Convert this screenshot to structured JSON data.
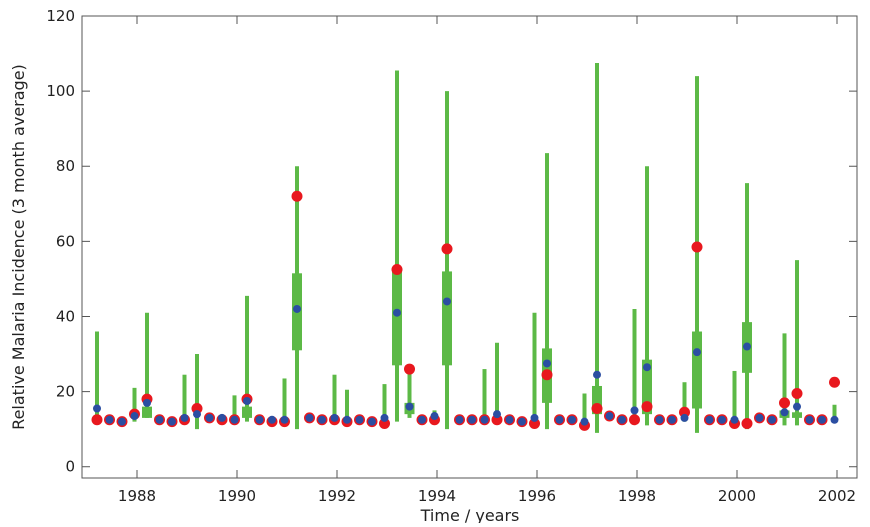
{
  "chart_data": {
    "type": "box",
    "xlabel": "Time / years",
    "ylabel": "Relative Malaria Incidence (3 month average)",
    "x": [
      1987.2,
      1987.45,
      1987.7,
      1987.95,
      1988.2,
      1988.45,
      1988.7,
      1988.95,
      1989.2,
      1989.45,
      1989.7,
      1989.95,
      1990.2,
      1990.45,
      1990.7,
      1990.95,
      1991.2,
      1991.45,
      1991.7,
      1991.95,
      1992.2,
      1992.45,
      1992.7,
      1992.95,
      1993.2,
      1993.45,
      1993.7,
      1993.95,
      1994.2,
      1994.45,
      1994.7,
      1994.95,
      1995.2,
      1995.45,
      1995.7,
      1995.95,
      1996.2,
      1996.45,
      1996.7,
      1996.95,
      1997.2,
      1997.45,
      1997.7,
      1997.95,
      1998.2,
      1998.45,
      1998.7,
      1998.95,
      1999.2,
      1999.45,
      1999.7,
      1999.95,
      2000.2,
      2000.45,
      2000.7,
      2000.95,
      2001.2,
      2001.45,
      2001.7,
      2001.95
    ],
    "high": [
      36,
      null,
      null,
      21,
      41,
      null,
      null,
      24.5,
      30,
      null,
      null,
      19,
      45.5,
      null,
      null,
      23.5,
      80,
      null,
      null,
      24.5,
      20.5,
      null,
      null,
      22,
      105.5,
      25,
      null,
      15,
      100,
      null,
      null,
      26,
      33,
      null,
      null,
      41,
      83.5,
      null,
      null,
      19.5,
      107.5,
      null,
      null,
      42,
      80,
      null,
      null,
      22.5,
      104,
      null,
      null,
      25.5,
      75.5,
      null,
      null,
      35.5,
      55,
      null,
      null,
      16.5
    ],
    "low": [
      12,
      null,
      null,
      12,
      13,
      null,
      null,
      12,
      10,
      null,
      null,
      12,
      12,
      null,
      null,
      11,
      10,
      null,
      null,
      12,
      12,
      null,
      null,
      11,
      12,
      13,
      null,
      12,
      10,
      null,
      null,
      12,
      12,
      null,
      null,
      11,
      10,
      null,
      null,
      11,
      9,
      null,
      null,
      12,
      11,
      null,
      null,
      12,
      9,
      null,
      null,
      11,
      10,
      null,
      null,
      11,
      11,
      null,
      null,
      12
    ],
    "q1": [
      null,
      null,
      null,
      null,
      13,
      null,
      null,
      null,
      null,
      null,
      null,
      null,
      13,
      null,
      null,
      null,
      31,
      null,
      null,
      null,
      null,
      null,
      null,
      null,
      27,
      14,
      null,
      null,
      27,
      null,
      null,
      null,
      null,
      null,
      null,
      null,
      17,
      null,
      null,
      null,
      14,
      null,
      null,
      null,
      14,
      null,
      null,
      null,
      15.5,
      null,
      null,
      null,
      25,
      null,
      null,
      13,
      13,
      null,
      null,
      null
    ],
    "q3": [
      null,
      null,
      null,
      null,
      16,
      null,
      null,
      null,
      null,
      null,
      null,
      null,
      16,
      null,
      null,
      null,
      51.5,
      null,
      null,
      null,
      null,
      null,
      null,
      null,
      52,
      17,
      null,
      null,
      52,
      null,
      null,
      null,
      null,
      null,
      null,
      null,
      31.5,
      null,
      null,
      null,
      21.5,
      null,
      null,
      null,
      28.5,
      null,
      null,
      null,
      36,
      null,
      null,
      null,
      38.5,
      null,
      null,
      15,
      14.5,
      null,
      null,
      null
    ],
    "median": [
      15.5,
      12.5,
      12,
      13.5,
      17,
      12.5,
      12,
      13,
      14,
      13,
      13,
      12.5,
      17.5,
      12.5,
      12.5,
      12.5,
      42,
      13,
      12.5,
      13,
      12.5,
      12.5,
      12,
      13,
      41,
      16,
      12.5,
      13.5,
      44,
      12.5,
      12.5,
      12.5,
      14,
      12.5,
      12,
      13,
      27.5,
      12.5,
      12.5,
      12,
      24.5,
      13.5,
      12.5,
      15,
      26.5,
      12.5,
      12.5,
      13,
      30.5,
      12.5,
      12.5,
      12.5,
      32,
      13,
      12.5,
      14.5,
      16,
      12.5,
      12.5,
      12.5
    ],
    "observed": [
      12.5,
      12.5,
      12,
      14,
      18,
      12.5,
      12,
      12.5,
      15.5,
      13,
      12.5,
      12.5,
      18,
      12.5,
      12,
      12,
      72,
      13,
      12.5,
      12.5,
      12,
      12.5,
      12,
      11.5,
      52.5,
      26,
      12.5,
      12.5,
      58,
      12.5,
      12.5,
      12.5,
      12.5,
      12.5,
      12,
      11.5,
      24.5,
      12.5,
      12.5,
      11,
      15.5,
      13.5,
      12.5,
      12.5,
      16,
      12.5,
      12.5,
      14.5,
      58.5,
      12.5,
      12.5,
      11.5,
      11.5,
      13,
      12.5,
      17,
      19.5,
      12.5,
      12.5,
      22.5
    ],
    "box_color": "#5cb946",
    "median_color": "#2b4ea2",
    "observed_color": "#e8181e",
    "xlim": [
      1986.9,
      2002.4
    ],
    "ylim": [
      -3,
      120
    ],
    "xticks": [
      1988,
      1990,
      1992,
      1994,
      1996,
      1998,
      2000,
      2002
    ],
    "yticks": [
      0,
      20,
      40,
      60,
      80,
      100,
      120
    ]
  }
}
